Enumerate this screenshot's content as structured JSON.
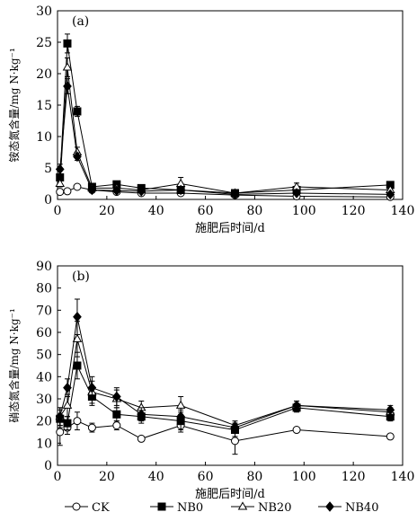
{
  "legend": [
    "CK",
    "NB0",
    "NB20",
    "NB40"
  ],
  "chart_data": [
    {
      "type": "line",
      "panel_label": "(a)",
      "xlabel": "施肥后时间/d",
      "ylabel": "铵态氮含量/mg N·kg⁻¹",
      "xlim": [
        0,
        140
      ],
      "ylim": [
        0,
        30
      ],
      "xticks": [
        0,
        20,
        40,
        60,
        80,
        100,
        120,
        140
      ],
      "yticks": [
        0,
        5,
        10,
        15,
        20,
        25,
        30
      ],
      "grid": false,
      "legend_position": "bottom",
      "series": [
        {
          "name": "CK",
          "marker": "circle-open",
          "x": [
            1,
            4,
            8,
            14,
            24,
            34,
            50,
            72,
            97,
            135
          ],
          "y": [
            1.2,
            1.3,
            2.0,
            1.5,
            1.2,
            1.0,
            1.0,
            0.7,
            0.5,
            0.4
          ],
          "err": [
            0.2,
            0.2,
            0.3,
            0.2,
            0.2,
            0.2,
            0.2,
            0.2,
            0.1,
            0.1
          ]
        },
        {
          "name": "NB0",
          "marker": "square-filled",
          "x": [
            1,
            4,
            8,
            14,
            24,
            34,
            50,
            72,
            97,
            135
          ],
          "y": [
            3.5,
            24.8,
            14.0,
            2.0,
            2.4,
            1.8,
            1.5,
            1.0,
            1.5,
            2.3
          ],
          "err": [
            0.5,
            1.5,
            0.8,
            0.3,
            0.3,
            0.3,
            0.3,
            0.2,
            0.3,
            0.3
          ]
        },
        {
          "name": "NB20",
          "marker": "triangle-open",
          "x": [
            1,
            4,
            8,
            14,
            24,
            34,
            50,
            72,
            97,
            135
          ],
          "y": [
            2.5,
            21.0,
            7.5,
            1.8,
            1.8,
            1.5,
            2.5,
            1.0,
            2.0,
            1.5
          ],
          "err": [
            0.5,
            1.5,
            0.8,
            0.3,
            0.3,
            0.3,
            1.0,
            0.3,
            0.6,
            0.3
          ]
        },
        {
          "name": "NB40",
          "marker": "diamond-filled",
          "x": [
            1,
            4,
            8,
            14,
            24,
            34,
            50,
            72,
            97,
            135
          ],
          "y": [
            4.8,
            18.0,
            6.8,
            1.5,
            1.4,
            1.3,
            1.5,
            0.8,
            1.0,
            0.8
          ],
          "err": [
            0.8,
            1.2,
            0.6,
            0.3,
            0.3,
            0.3,
            0.3,
            0.2,
            0.2,
            0.2
          ]
        }
      ]
    },
    {
      "type": "line",
      "panel_label": "(b)",
      "xlabel": "施肥后时间/d",
      "ylabel": "硝态氮含量/mg N·kg⁻¹",
      "xlim": [
        0,
        140
      ],
      "ylim": [
        0,
        90
      ],
      "xticks": [
        0,
        20,
        40,
        60,
        80,
        100,
        120,
        140
      ],
      "yticks": [
        0,
        10,
        20,
        30,
        40,
        50,
        60,
        70,
        80,
        90
      ],
      "grid": false,
      "legend_position": "bottom",
      "series": [
        {
          "name": "CK",
          "marker": "circle-open",
          "x": [
            1,
            4,
            8,
            14,
            24,
            34,
            50,
            72,
            97,
            135
          ],
          "y": [
            15,
            17,
            20,
            17,
            18,
            12,
            18,
            11,
            16,
            13
          ],
          "err": [
            6,
            3,
            4,
            2,
            2,
            1,
            3,
            6,
            1,
            1
          ]
        },
        {
          "name": "NB0",
          "marker": "square-filled",
          "x": [
            1,
            4,
            8,
            14,
            24,
            34,
            50,
            72,
            97,
            135
          ],
          "y": [
            21,
            19,
            45,
            31,
            23,
            22,
            20,
            16,
            26,
            22
          ],
          "err": [
            4,
            3,
            6,
            4,
            3,
            3,
            4,
            3,
            2,
            2
          ]
        },
        {
          "name": "NB20",
          "marker": "triangle-open",
          "x": [
            1,
            4,
            8,
            14,
            24,
            34,
            50,
            72,
            97,
            135
          ],
          "y": [
            22,
            27,
            57,
            33,
            30,
            26,
            27,
            18,
            27,
            24
          ],
          "err": [
            4,
            5,
            8,
            5,
            4,
            3,
            4,
            2,
            2,
            2
          ]
        },
        {
          "name": "NB40",
          "marker": "diamond-filled",
          "x": [
            1,
            4,
            8,
            14,
            24,
            34,
            50,
            72,
            97,
            135
          ],
          "y": [
            22,
            35,
            67,
            35,
            31,
            23,
            22,
            17,
            27,
            25
          ],
          "err": [
            4,
            4,
            8,
            5,
            4,
            3,
            3,
            2,
            2,
            2
          ]
        }
      ]
    }
  ]
}
